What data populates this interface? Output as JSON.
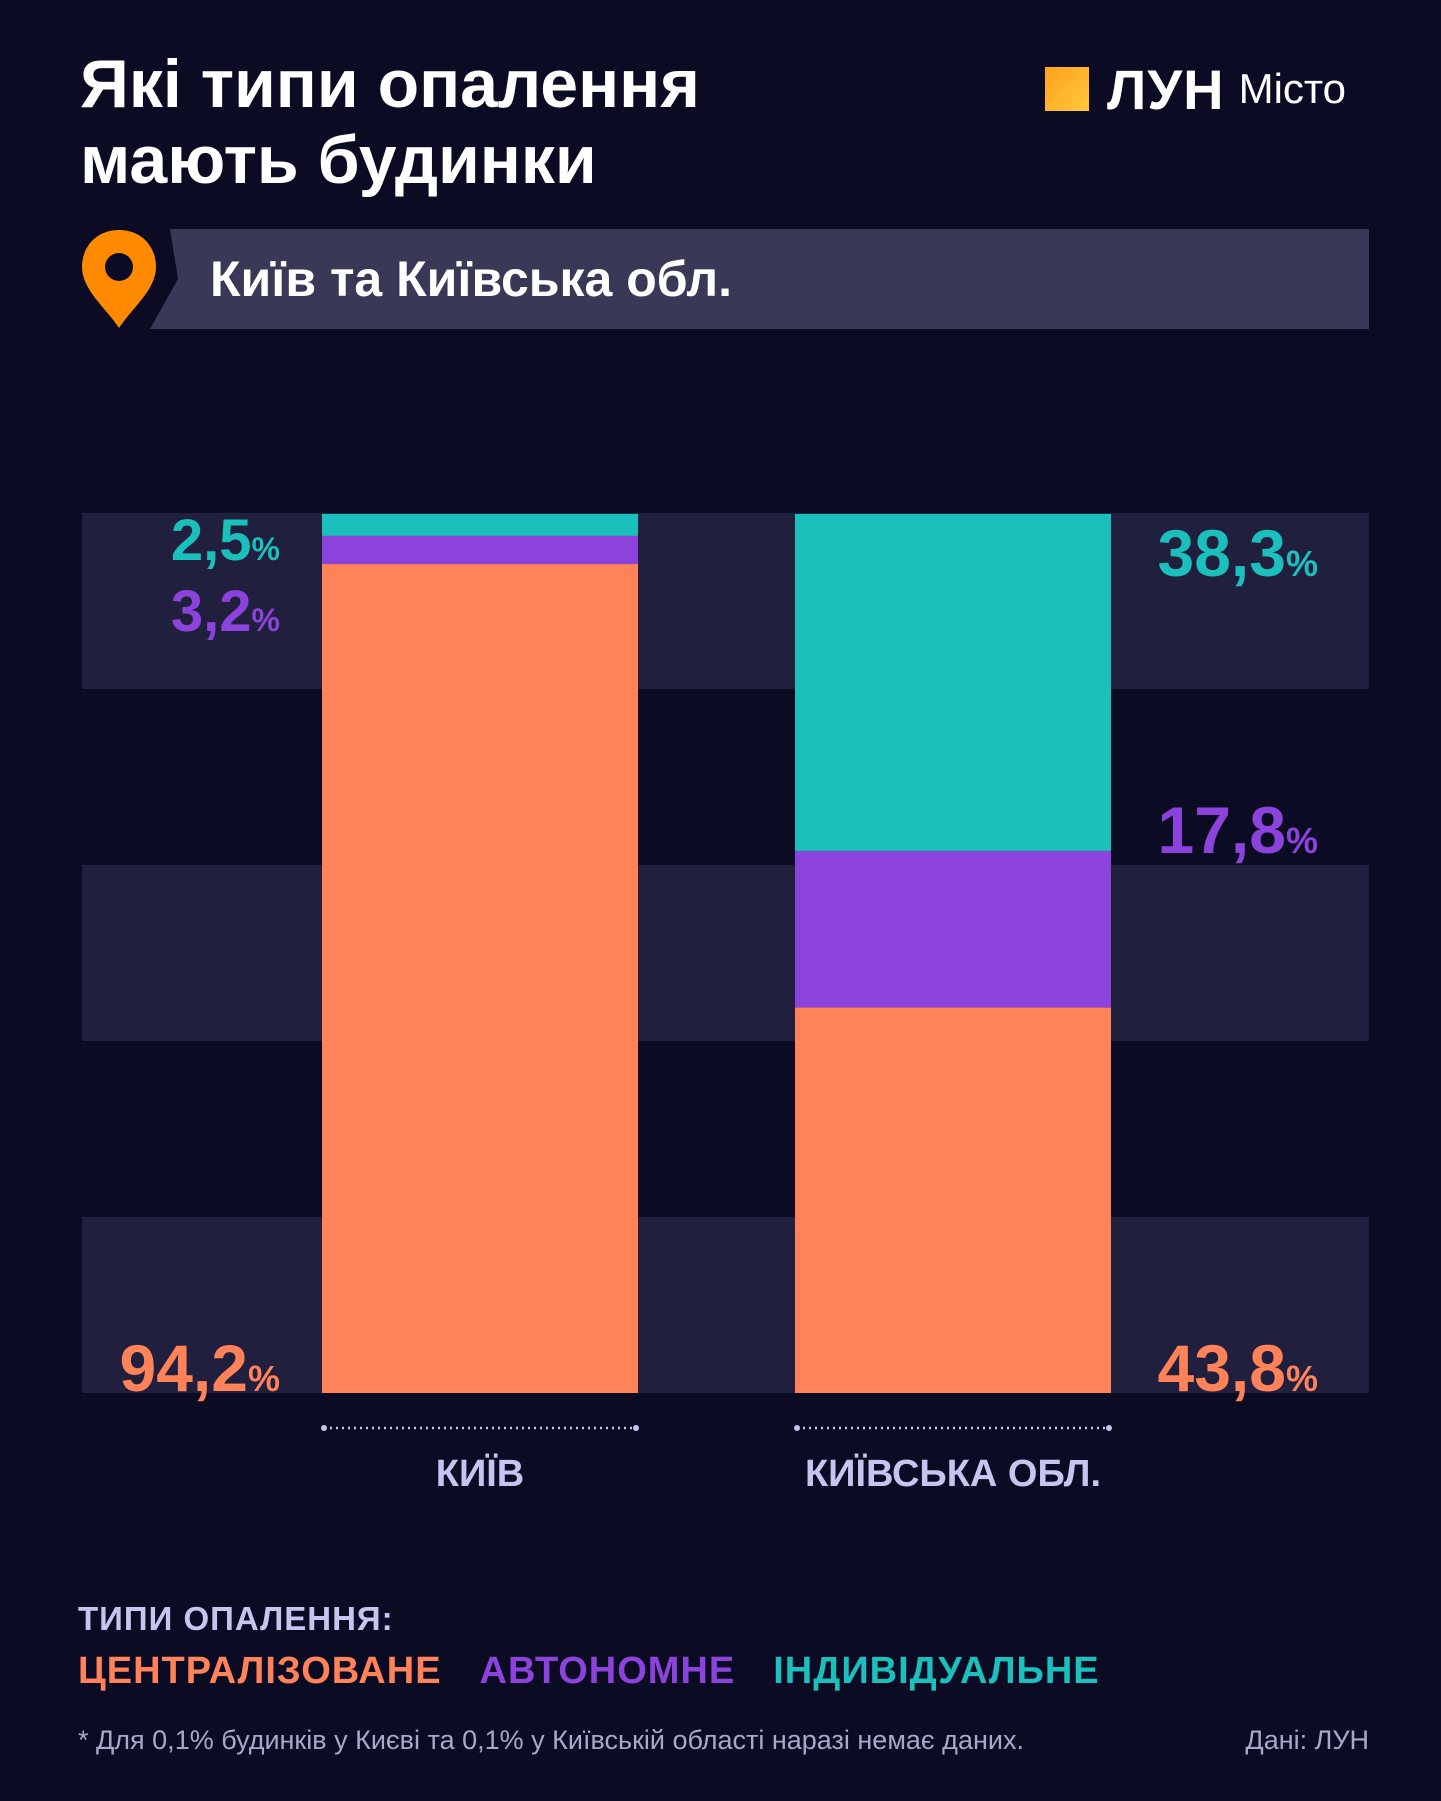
{
  "title_line1": "Які типи опалення",
  "title_line2": "мають будинки",
  "logo": {
    "brand": "ЛУН",
    "sub": "Місто"
  },
  "region": "Київ та Київська обл.",
  "legend": {
    "title": "ТИПИ ОПАЛЕННЯ:",
    "items": [
      {
        "label": "ЦЕНТРАЛІЗОВАНЕ",
        "color": "#ff8259"
      },
      {
        "label": "АВТОНОМНЕ",
        "color": "#8c43dc"
      },
      {
        "label": "ІНДИВІДУАЛЬНЕ",
        "color": "#1bbfbb"
      }
    ]
  },
  "footnote": "* Для 0,1% будинків у Києві та 0,1% у Київській області наразі немає даних.",
  "source": "Дані: ЛУН",
  "chart_data": {
    "type": "bar",
    "stacked": true,
    "categories": [
      "КИЇВ",
      "КИЇВСЬКА ОБЛ."
    ],
    "series": [
      {
        "name": "ЦЕНТРАЛІЗОВАНЕ",
        "color": "#ff8259",
        "values": [
          94.2,
          43.8
        ],
        "labels": [
          "94,2",
          "43,8"
        ]
      },
      {
        "name": "АВТОНОМНЕ",
        "color": "#8c43dc",
        "values": [
          3.2,
          17.8
        ],
        "labels": [
          "3,2",
          "17,8"
        ]
      },
      {
        "name": "ІНДИВІДУАЛЬНЕ",
        "color": "#1bbfbb",
        "values": [
          2.5,
          38.3
        ],
        "labels": [
          "2,5",
          "38,3"
        ]
      }
    ],
    "unit": "%",
    "ylim": [
      0,
      100
    ],
    "background_bands": true
  }
}
